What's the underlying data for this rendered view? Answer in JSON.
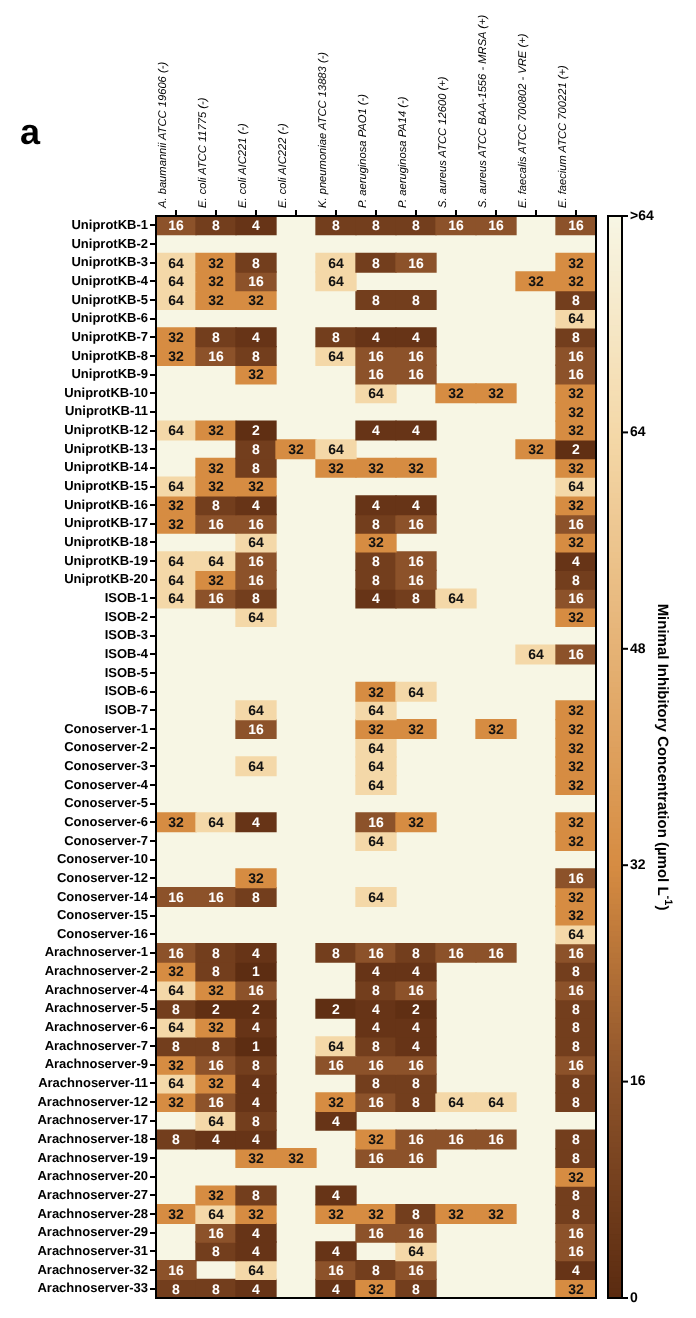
{
  "chart_data": {
    "type": "heatmap",
    "annotations": [
      "a"
    ],
    "clabel": "Minimal Inhibitory Concentration (µmol L$^{-1}$)",
    "categories": [
      "A. baumannii ATCC 19606 (-)",
      "E. coli ATCC 11775 (-)",
      "E. coli AIC221 (-)",
      "E. coli AIC222 (-)",
      "K. pneumoniae ATCC 13883 (-)",
      "P. aeruginosa PAO1 (-)",
      "P. aeruginosa PA14 (-)",
      "S. aureus ATCC 12600 (+)",
      "S. aureus ATCC BAA-1556 - MRSA (+)",
      "E. faecalis ATCC 700802 - VRE (+)",
      "E. faecium ATCC 700221 (+)"
    ],
    "y_categories": [
      "UniprotKB-1",
      "UniprotKB-2",
      "UniprotKB-3",
      "UniprotKB-4",
      "UniprotKB-5",
      "UniprotKB-6",
      "UniprotKB-7",
      "UniprotKB-8",
      "UniprotKB-9",
      "UniprotKB-10",
      "UniprotKB-11",
      "UniprotKB-12",
      "UniprotKB-13",
      "UniprotKB-14",
      "UniprotKB-15",
      "UniprotKB-16",
      "UniprotKB-17",
      "UniprotKB-18",
      "UniprotKB-19",
      "UniprotKB-20",
      "ISOB-1",
      "ISOB-2",
      "ISOB-3",
      "ISOB-4",
      "ISOB-5",
      "ISOB-6",
      "ISOB-7",
      "Conoserver-1",
      "Conoserver-2",
      "Conoserver-3",
      "Conoserver-4",
      "Conoserver-5",
      "Conoserver-6",
      "Conoserver-7",
      "Conoserver-10",
      "Conoserver-12",
      "Conoserver-14",
      "Conoserver-15",
      "Conoserver-16",
      "Arachnoserver-1",
      "Arachnoserver-2",
      "Arachnoserver-4",
      "Arachnoserver-5",
      "Arachnoserver-6",
      "Arachnoserver-7",
      "Arachnoserver-9",
      "Arachnoserver-11",
      "Arachnoserver-12",
      "Arachnoserver-17",
      "Arachnoserver-18",
      "Arachnoserver-19",
      "Arachnoserver-20",
      "Arachnoserver-27",
      "Arachnoserver-28",
      "Arachnoserver-29",
      "Arachnoserver-31",
      "Arachnoserver-32",
      "Arachnoserver-33"
    ],
    "cells": [
      [
        16,
        8,
        4,
        null,
        8,
        8,
        8,
        16,
        16,
        null,
        16
      ],
      [
        null,
        null,
        null,
        null,
        null,
        null,
        null,
        null,
        null,
        null,
        null
      ],
      [
        64,
        32,
        8,
        null,
        64,
        8,
        16,
        null,
        null,
        null,
        32
      ],
      [
        64,
        32,
        16,
        null,
        64,
        null,
        null,
        null,
        null,
        32,
        32
      ],
      [
        64,
        32,
        32,
        null,
        null,
        8,
        8,
        null,
        null,
        null,
        8
      ],
      [
        null,
        null,
        null,
        null,
        null,
        null,
        null,
        null,
        null,
        null,
        64
      ],
      [
        32,
        8,
        4,
        null,
        8,
        4,
        4,
        null,
        null,
        null,
        8
      ],
      [
        32,
        16,
        8,
        null,
        64,
        16,
        16,
        null,
        null,
        null,
        16
      ],
      [
        null,
        null,
        32,
        null,
        null,
        16,
        16,
        null,
        null,
        null,
        16
      ],
      [
        null,
        null,
        null,
        null,
        null,
        64,
        null,
        32,
        32,
        null,
        32
      ],
      [
        null,
        null,
        null,
        null,
        null,
        null,
        null,
        null,
        null,
        null,
        32
      ],
      [
        64,
        32,
        2,
        null,
        null,
        4,
        4,
        null,
        null,
        null,
        32
      ],
      [
        null,
        null,
        8,
        32,
        64,
        null,
        null,
        null,
        null,
        32,
        2
      ],
      [
        null,
        32,
        8,
        null,
        32,
        32,
        32,
        null,
        null,
        null,
        32
      ],
      [
        64,
        32,
        32,
        null,
        null,
        null,
        null,
        null,
        null,
        null,
        64
      ],
      [
        32,
        8,
        4,
        null,
        null,
        4,
        4,
        null,
        null,
        null,
        32
      ],
      [
        32,
        16,
        16,
        null,
        null,
        8,
        16,
        null,
        null,
        null,
        16
      ],
      [
        null,
        null,
        64,
        null,
        null,
        32,
        null,
        null,
        null,
        null,
        32
      ],
      [
        64,
        64,
        16,
        null,
        null,
        8,
        16,
        null,
        null,
        null,
        4
      ],
      [
        64,
        32,
        16,
        null,
        null,
        8,
        16,
        null,
        null,
        null,
        8
      ],
      [
        64,
        16,
        8,
        null,
        null,
        4,
        8,
        64,
        null,
        null,
        16
      ],
      [
        null,
        null,
        64,
        null,
        null,
        null,
        null,
        null,
        null,
        null,
        32
      ],
      [
        null,
        null,
        null,
        null,
        null,
        null,
        null,
        null,
        null,
        null,
        null
      ],
      [
        null,
        null,
        null,
        null,
        null,
        null,
        null,
        null,
        null,
        64,
        16
      ],
      [
        null,
        null,
        null,
        null,
        null,
        null,
        null,
        null,
        null,
        null,
        null
      ],
      [
        null,
        null,
        null,
        null,
        null,
        32,
        64,
        null,
        null,
        null,
        null
      ],
      [
        null,
        null,
        64,
        null,
        null,
        64,
        null,
        null,
        null,
        null,
        32
      ],
      [
        null,
        null,
        16,
        null,
        null,
        32,
        32,
        null,
        32,
        null,
        32
      ],
      [
        null,
        null,
        null,
        null,
        null,
        64,
        null,
        null,
        null,
        null,
        32
      ],
      [
        null,
        null,
        64,
        null,
        null,
        64,
        null,
        null,
        null,
        null,
        32
      ],
      [
        null,
        null,
        null,
        null,
        null,
        64,
        null,
        null,
        null,
        null,
        32
      ],
      [
        null,
        null,
        null,
        null,
        null,
        null,
        null,
        null,
        null,
        null,
        null
      ],
      [
        32,
        64,
        4,
        null,
        null,
        16,
        32,
        null,
        null,
        null,
        32
      ],
      [
        null,
        null,
        null,
        null,
        null,
        64,
        null,
        null,
        null,
        null,
        32
      ],
      [
        null,
        null,
        null,
        null,
        null,
        null,
        null,
        null,
        null,
        null,
        null
      ],
      [
        null,
        null,
        32,
        null,
        null,
        null,
        null,
        null,
        null,
        null,
        16
      ],
      [
        16,
        16,
        8,
        null,
        null,
        64,
        null,
        null,
        null,
        null,
        32
      ],
      [
        null,
        null,
        null,
        null,
        null,
        null,
        null,
        null,
        null,
        null,
        32
      ],
      [
        null,
        null,
        null,
        null,
        null,
        null,
        null,
        null,
        null,
        null,
        64
      ],
      [
        16,
        8,
        4,
        null,
        8,
        16,
        8,
        16,
        16,
        null,
        16
      ],
      [
        32,
        8,
        1,
        null,
        null,
        4,
        4,
        null,
        null,
        null,
        8
      ],
      [
        64,
        32,
        16,
        null,
        null,
        8,
        16,
        null,
        null,
        null,
        16
      ],
      [
        8,
        2,
        2,
        null,
        2,
        4,
        2,
        null,
        null,
        null,
        8
      ],
      [
        64,
        32,
        4,
        null,
        null,
        4,
        4,
        null,
        null,
        null,
        8
      ],
      [
        8,
        8,
        1,
        null,
        64,
        8,
        4,
        null,
        null,
        null,
        8
      ],
      [
        32,
        16,
        8,
        null,
        16,
        16,
        16,
        null,
        null,
        null,
        16
      ],
      [
        64,
        32,
        4,
        null,
        null,
        8,
        8,
        null,
        null,
        null,
        8
      ],
      [
        32,
        16,
        4,
        null,
        32,
        16,
        8,
        64,
        64,
        null,
        8
      ],
      [
        null,
        64,
        8,
        null,
        4,
        null,
        null,
        null,
        null,
        null,
        null
      ],
      [
        8,
        4,
        4,
        null,
        null,
        32,
        16,
        16,
        16,
        null,
        8
      ],
      [
        null,
        null,
        32,
        32,
        null,
        16,
        16,
        null,
        null,
        null,
        8
      ],
      [
        null,
        null,
        null,
        null,
        null,
        null,
        null,
        null,
        null,
        null,
        32
      ],
      [
        null,
        32,
        8,
        null,
        4,
        null,
        null,
        null,
        null,
        null,
        8
      ],
      [
        32,
        64,
        32,
        null,
        32,
        32,
        8,
        32,
        32,
        null,
        8
      ],
      [
        null,
        16,
        4,
        null,
        null,
        16,
        16,
        null,
        null,
        null,
        16
      ],
      [
        null,
        8,
        4,
        null,
        4,
        null,
        64,
        null,
        null,
        null,
        16
      ],
      [
        16,
        null,
        64,
        null,
        16,
        8,
        16,
        null,
        null,
        null,
        4
      ],
      [
        8,
        8,
        4,
        null,
        4,
        32,
        8,
        null,
        null,
        null,
        32
      ]
    ],
    "clim": [
      0,
      80
    ],
    "cticks": [
      0,
      16,
      32,
      48,
      64,
      {
        "value": 80,
        "label": ">64"
      }
    ],
    "data_labels": true
  }
}
